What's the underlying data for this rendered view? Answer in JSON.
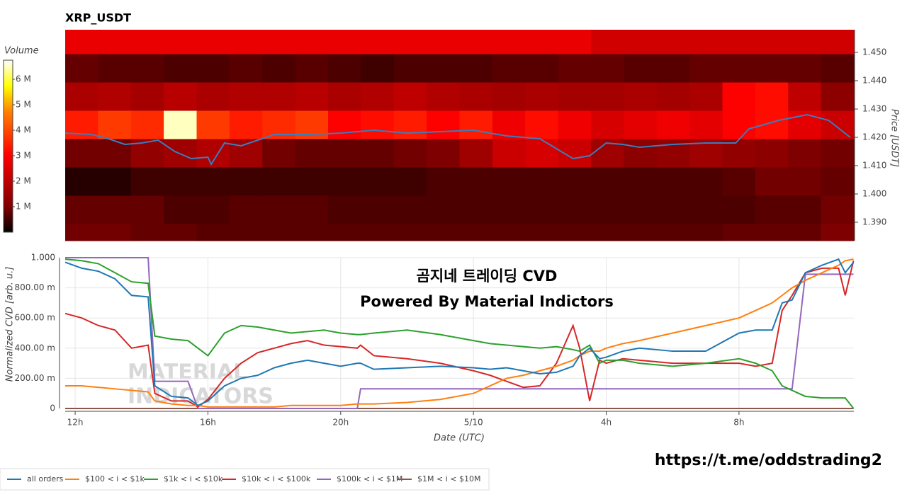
{
  "chart_data": [
    {
      "type": "heatmap",
      "title": "XRP_USDT",
      "y2label": "Price [USDT]",
      "colorbar_label": "Volume",
      "xlim": [
        11.7,
        35.46
      ],
      "x_edges": [
        11.7,
        12.69,
        13.68,
        14.67,
        15.66,
        16.65,
        17.64,
        18.63,
        19.62,
        20.61,
        21.6,
        22.59,
        23.58,
        24.57,
        25.56,
        26.55,
        27.54,
        28.53,
        29.52,
        30.51,
        31.5,
        32.49,
        33.48,
        34.47,
        35.46
      ],
      "y_edges": [
        1.3835,
        1.3895,
        1.3995,
        1.4095,
        1.4195,
        1.4295,
        1.4395,
        1.4495,
        1.458
      ],
      "ylim": [
        1.3835,
        1.458
      ],
      "yticks": [
        {
          "value": 1.39,
          "label": "1.390"
        },
        {
          "value": 1.4,
          "label": "1.400"
        },
        {
          "value": 1.41,
          "label": "1.410"
        },
        {
          "value": 1.42,
          "label": "1.420"
        },
        {
          "value": 1.43,
          "label": "1.430"
        },
        {
          "value": 1.44,
          "label": "1.440"
        },
        {
          "value": 1.45,
          "label": "1.450"
        }
      ],
      "zlim": [
        0,
        6.75
      ],
      "zticks": [
        {
          "value": 1,
          "label": "1 M"
        },
        {
          "value": 2,
          "label": "2 M"
        },
        {
          "value": 3,
          "label": "3 M"
        },
        {
          "value": 4,
          "label": "4 M"
        },
        {
          "value": 5,
          "label": "5 M"
        },
        {
          "value": 6,
          "label": "6 M"
        }
      ],
      "colorscale": [
        [
          0,
          "#000000"
        ],
        [
          0.15,
          "#800000"
        ],
        [
          0.45,
          "#ff0000"
        ],
        [
          0.7,
          "#ff8000"
        ],
        [
          0.85,
          "#ffff00"
        ],
        [
          1,
          "#ffffff"
        ]
      ],
      "z": [
        [
          0.9,
          0.9,
          0.8,
          0.8,
          0.7,
          0.7,
          0.7,
          0.7,
          0.7,
          0.7,
          0.7,
          0.7,
          0.7,
          0.7,
          0.7,
          0.7,
          0.7,
          0.7,
          0.7,
          0.7,
          0.8,
          0.8,
          0.8,
          1.0
        ],
        [
          0.8,
          0.8,
          0.8,
          0.6,
          0.6,
          0.7,
          0.7,
          0.7,
          0.6,
          0.6,
          0.6,
          0.6,
          0.6,
          0.6,
          0.6,
          0.6,
          0.6,
          0.6,
          0.6,
          0.6,
          0.6,
          0.7,
          0.7,
          0.9
        ],
        [
          0.3,
          0.3,
          0.5,
          0.5,
          0.5,
          0.5,
          0.5,
          0.5,
          0.5,
          0.5,
          0.5,
          0.6,
          0.6,
          0.6,
          0.6,
          0.6,
          0.6,
          0.6,
          0.6,
          0.6,
          0.7,
          0.9,
          0.9,
          0.8
        ],
        [
          0.9,
          0.9,
          1.3,
          1.5,
          1.8,
          1.5,
          0.9,
          0.8,
          0.8,
          0.8,
          0.9,
          1.0,
          1.5,
          2.2,
          2.4,
          2.2,
          1.5,
          1.2,
          1.3,
          1.5,
          1.3,
          1.2,
          1.0,
          0.9
        ],
        [
          3.4,
          3.8,
          3.6,
          6.5,
          3.8,
          3.4,
          3.6,
          3.8,
          3.0,
          3.2,
          3.4,
          3.0,
          3.4,
          2.8,
          3.2,
          2.8,
          2.4,
          2.6,
          2.8,
          2.6,
          3.0,
          3.2,
          2.6,
          2.2
        ],
        [
          1.7,
          1.8,
          1.6,
          1.9,
          1.7,
          1.8,
          1.8,
          1.9,
          1.7,
          1.8,
          2.0,
          1.8,
          1.7,
          1.6,
          1.7,
          1.6,
          1.6,
          1.7,
          1.6,
          1.7,
          3.0,
          3.2,
          2.0,
          1.2
        ],
        [
          0.8,
          0.7,
          0.7,
          0.6,
          0.6,
          0.7,
          0.6,
          0.7,
          0.6,
          0.5,
          0.6,
          0.6,
          0.6,
          0.7,
          0.7,
          0.8,
          0.8,
          0.7,
          0.7,
          0.8,
          0.8,
          0.8,
          0.8,
          0.7
        ],
        [
          2.7,
          2.7,
          2.7,
          2.7,
          2.7,
          2.7,
          2.7,
          2.7,
          2.7,
          2.7,
          2.7,
          2.7,
          2.7,
          2.7,
          2.7,
          2.7,
          2.3,
          2.3,
          2.3,
          2.3,
          2.3,
          2.3,
          2.3,
          2.3
        ]
      ],
      "line": {
        "color": "#3b7dbf",
        "x": [
          11.7,
          12.5,
          13.0,
          13.5,
          14.0,
          14.5,
          15.0,
          15.5,
          16.0,
          16.1,
          16.5,
          17.0,
          17.5,
          18.0,
          19.0,
          20.0,
          21.0,
          22.0,
          23.0,
          24.0,
          25.0,
          26.0,
          26.5,
          27.0,
          27.5,
          28.0,
          28.5,
          29.0,
          30.0,
          31.0,
          31.9,
          32.3,
          33.2,
          34.05,
          34.7,
          35.35
        ],
        "values": [
          1.4215,
          1.421,
          1.4195,
          1.4175,
          1.418,
          1.419,
          1.415,
          1.4125,
          1.413,
          1.4105,
          1.418,
          1.417,
          1.419,
          1.421,
          1.421,
          1.4215,
          1.4225,
          1.4215,
          1.422,
          1.4225,
          1.4205,
          1.4195,
          1.416,
          1.4125,
          1.4135,
          1.418,
          1.4175,
          1.4165,
          1.4175,
          1.418,
          1.418,
          1.423,
          1.426,
          1.428,
          1.426,
          1.42
        ]
      }
    },
    {
      "type": "line",
      "xlabel": "Date (UTC)",
      "ylabel": "Normalized CVD [arb. u.]",
      "annotations": [
        "곰지네 트레이딩 CVD",
        "Powered By Material Indictors"
      ],
      "xlim": [
        11.7,
        35.46
      ],
      "ylim": [
        0,
        1.0
      ],
      "grid": true,
      "xticks": [
        {
          "value": 12,
          "label": "12h"
        },
        {
          "value": 16,
          "label": "16h"
        },
        {
          "value": 20,
          "label": "20h"
        },
        {
          "value": 24,
          "label": "5/10"
        },
        {
          "value": 28,
          "label": "4h"
        },
        {
          "value": 32,
          "label": "8h"
        }
      ],
      "yticks": [
        0,
        {
          "value": 0.2,
          "label": "200.00 m"
        },
        {
          "value": 0.4,
          "label": "400.00 m"
        },
        {
          "value": 0.6,
          "label": "600.00 m"
        },
        {
          "value": 0.8,
          "label": "800.00 m"
        },
        {
          "value": 1.0,
          "label": "1.000"
        }
      ],
      "x": [
        11.7,
        12.2,
        12.7,
        13.2,
        13.7,
        14.2,
        14.4,
        14.9,
        15.4,
        15.7,
        16.0,
        16.5,
        17.0,
        17.5,
        18.0,
        18.5,
        19.0,
        19.5,
        20.0,
        20.5,
        20.6,
        21.0,
        22.0,
        23.0,
        24.0,
        24.5,
        25.0,
        25.5,
        26.0,
        26.5,
        27.0,
        27.2,
        27.5,
        27.8,
        28.0,
        28.5,
        29.0,
        30.0,
        31.0,
        32.0,
        32.5,
        33.0,
        33.3,
        33.6,
        34.0,
        34.5,
        35.0,
        35.2,
        35.45
      ],
      "series": [
        {
          "name": "all orders",
          "color": "#1f77b4",
          "values": [
            0.97,
            0.93,
            0.91,
            0.86,
            0.75,
            0.74,
            0.15,
            0.08,
            0.07,
            0.02,
            0.05,
            0.15,
            0.2,
            0.22,
            0.27,
            0.3,
            0.32,
            0.3,
            0.28,
            0.3,
            0.3,
            0.26,
            0.27,
            0.28,
            0.27,
            0.26,
            0.27,
            0.25,
            0.23,
            0.24,
            0.28,
            0.35,
            0.4,
            0.33,
            0.34,
            0.38,
            0.4,
            0.38,
            0.38,
            0.5,
            0.52,
            0.52,
            0.7,
            0.72,
            0.9,
            0.95,
            0.99,
            0.9,
            0.97
          ]
        },
        {
          "name": "$100 < i < $1k",
          "color": "#ff7f0e",
          "values": [
            0.15,
            0.15,
            0.14,
            0.13,
            0.12,
            0.11,
            0.05,
            0.03,
            0.02,
            0.02,
            0.01,
            0.01,
            0.01,
            0.01,
            0.01,
            0.02,
            0.02,
            0.02,
            0.02,
            0.03,
            0.03,
            0.03,
            0.04,
            0.06,
            0.1,
            0.15,
            0.2,
            0.22,
            0.25,
            0.28,
            0.32,
            0.35,
            0.38,
            0.38,
            0.4,
            0.43,
            0.45,
            0.5,
            0.55,
            0.6,
            0.65,
            0.7,
            0.75,
            0.8,
            0.85,
            0.9,
            0.95,
            0.98,
            0.99
          ]
        },
        {
          "name": "$1k < i < $10k",
          "color": "#2ca02c",
          "values": [
            0.99,
            0.98,
            0.96,
            0.9,
            0.84,
            0.83,
            0.48,
            0.46,
            0.45,
            0.4,
            0.35,
            0.5,
            0.55,
            0.54,
            0.52,
            0.5,
            0.51,
            0.52,
            0.5,
            0.49,
            0.49,
            0.5,
            0.52,
            0.49,
            0.45,
            0.43,
            0.42,
            0.41,
            0.4,
            0.41,
            0.39,
            0.38,
            0.42,
            0.3,
            0.32,
            0.32,
            0.3,
            0.28,
            0.3,
            0.33,
            0.3,
            0.25,
            0.15,
            0.12,
            0.08,
            0.07,
            0.07,
            0.07,
            0
          ]
        },
        {
          "name": "$10k < i < $100k",
          "color": "#d62728",
          "values": [
            0.63,
            0.6,
            0.55,
            0.52,
            0.4,
            0.42,
            0.1,
            0.05,
            0.05,
            0.01,
            0.06,
            0.2,
            0.3,
            0.37,
            0.4,
            0.43,
            0.45,
            0.42,
            0.41,
            0.4,
            0.42,
            0.35,
            0.33,
            0.3,
            0.25,
            0.22,
            0.18,
            0.14,
            0.15,
            0.3,
            0.55,
            0.4,
            0.05,
            0.32,
            0.3,
            0.33,
            0.32,
            0.3,
            0.3,
            0.3,
            0.28,
            0.3,
            0.65,
            0.75,
            0.9,
            0.93,
            0.93,
            0.75,
            0.98
          ]
        },
        {
          "name": "$100k < i < $1M",
          "color": "#9467bd",
          "values": [
            1,
            1,
            1,
            1,
            1,
            1,
            0.18,
            0.18,
            0.18,
            0,
            0,
            0,
            0,
            0,
            0,
            0,
            0,
            0,
            0,
            0,
            0.13,
            0.13,
            0.13,
            0.13,
            0.13,
            0.13,
            0.13,
            0.13,
            0.13,
            0.13,
            0.13,
            0.13,
            0.13,
            0.13,
            0.13,
            0.13,
            0.13,
            0.13,
            0.13,
            0.13,
            0.13,
            0.13,
            0.13,
            0.13,
            0.89,
            0.89,
            0.89,
            0.89,
            0.89
          ]
        },
        {
          "name": "$1M < i < $10M",
          "color": "#8c564b",
          "values": [
            0,
            0,
            0,
            0,
            0,
            0,
            0,
            0,
            0,
            0,
            0,
            0,
            0,
            0,
            0,
            0,
            0,
            0,
            0,
            0,
            0,
            0,
            0,
            0,
            0,
            0,
            0,
            0,
            0,
            0,
            0,
            0,
            0,
            0,
            0,
            0,
            0,
            0,
            0,
            0,
            0,
            0,
            0,
            0,
            0,
            0,
            0,
            0,
            0
          ]
        }
      ]
    }
  ],
  "watermark": [
    "MATERIAL",
    "INDICATORS"
  ],
  "footer_link": "https://t.me/oddstrading2"
}
